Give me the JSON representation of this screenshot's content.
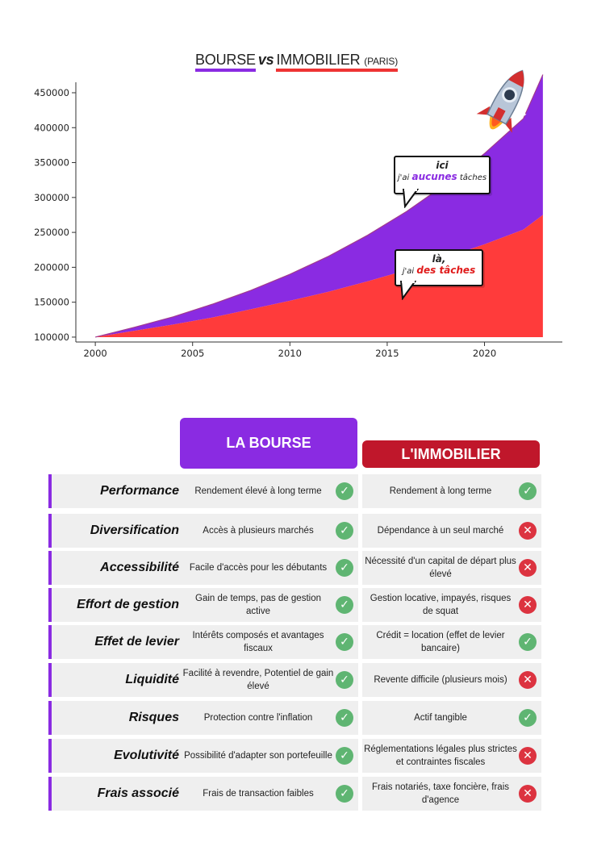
{
  "chart_title": {
    "part1": "BOURSE",
    "vs": "vs",
    "part2": "IMMOBILIER",
    "part3": "(PARIS)"
  },
  "chart_data": {
    "type": "area",
    "x": [
      2000,
      2002,
      2004,
      2006,
      2008,
      2010,
      2012,
      2014,
      2016,
      2018,
      2020,
      2022,
      2023
    ],
    "xlim": [
      1999,
      2024
    ],
    "ylim": [
      93000,
      465000
    ],
    "xticks": [
      2000,
      2005,
      2010,
      2015,
      2020
    ],
    "yticks": [
      100000,
      150000,
      200000,
      250000,
      300000,
      350000,
      400000,
      450000
    ],
    "series": [
      {
        "values": [
          100000,
          114000,
          129000,
          147000,
          167000,
          190000,
          216000,
          246000,
          280000,
          319000,
          363000,
          413000,
          476000
        ],
        "color": "#8a2be2"
      },
      {
        "values": [
          100000,
          109000,
          118000,
          128000,
          140000,
          152000,
          165000,
          180000,
          196000,
          214000,
          233000,
          254000,
          275000
        ],
        "color": "#ff3b3b"
      }
    ],
    "grid": false,
    "xlabel": "",
    "ylabel": ""
  },
  "bubbles": {
    "stock": {
      "line1": "ici",
      "line2a": "j'ai ",
      "line2b": "aucunes",
      "line2c": " tâches"
    },
    "real_estate": {
      "line1": "là,",
      "line2a": "j'ai ",
      "line2b": "des tâches"
    }
  },
  "table": {
    "header_stock": "LA BOURSE",
    "header_real_estate": "L'IMMOBILIER",
    "rows": [
      {
        "criterion": "Performance",
        "stock": "Rendement élevé à long terme",
        "stock_ok": true,
        "real_estate": "Rendement à long terme",
        "real_estate_ok": true
      },
      {
        "criterion": "Diversification",
        "stock": "Accès à plusieurs marchés",
        "stock_ok": true,
        "real_estate": "Dépendance à un seul marché",
        "real_estate_ok": false
      },
      {
        "criterion": "Accessibilité",
        "stock": "Facile d'accès pour les débutants",
        "stock_ok": true,
        "real_estate": "Nécessité d'un capital de départ plus élevé",
        "real_estate_ok": false
      },
      {
        "criterion": "Effort de gestion",
        "stock": "Gain de temps, pas de gestion active",
        "stock_ok": true,
        "real_estate": "Gestion locative, impayés, risques de squat",
        "real_estate_ok": false
      },
      {
        "criterion": "Effet de levier",
        "stock": "Intérêts composés et avantages fiscaux",
        "stock_ok": true,
        "real_estate": "Crédit = location (effet de levier bancaire)",
        "real_estate_ok": true
      },
      {
        "criterion": "Liquidité",
        "stock": "Facilité à revendre, Potentiel de gain élevé",
        "stock_ok": true,
        "real_estate": "Revente difficile (plusieurs mois)",
        "real_estate_ok": false
      },
      {
        "criterion": "Risques",
        "stock": "Protection contre l'inflation",
        "stock_ok": true,
        "real_estate": "Actif tangible",
        "real_estate_ok": true
      },
      {
        "criterion": "Evolutivité",
        "stock": "Possibilité d'adapter son portefeuille",
        "stock_ok": true,
        "real_estate": "Réglementations légales plus strictes et contraintes fiscales",
        "real_estate_ok": false
      },
      {
        "criterion": "Frais associé",
        "stock": "Frais de transaction faibles",
        "stock_ok": true,
        "real_estate": "Frais notariés, taxe foncière, frais d'agence",
        "real_estate_ok": false
      }
    ]
  },
  "colors": {
    "stock": "#8a2be2",
    "real_estate": "#c0172b",
    "check": "#5fb572",
    "cross": "#dc3340"
  },
  "icons": {
    "check": "check-icon",
    "cross": "cross-icon",
    "rocket": "rocket-icon"
  }
}
